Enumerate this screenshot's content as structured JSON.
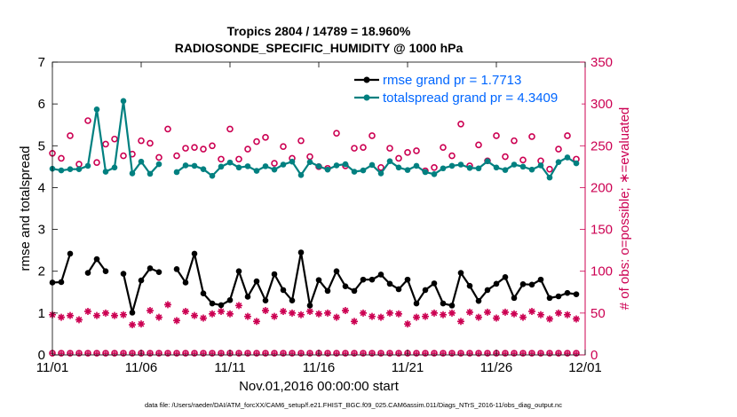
{
  "chart_data": {
    "type": "line",
    "title": "Tropics 2804 / 14789 = 18.960%",
    "subtitle": "RADIOSONDE_SPECIFIC_HUMIDITY @ 1000 hPa",
    "xlabel": "Nov.01,2016 00:00:00 start",
    "ylabel": "rmse and totalspread",
    "ylabel_right": "# of obs: o=possible; ∗=evaluated",
    "footnote": "data file: /Users/raeder/DAI/ATM_forcXX/CAM6_setup/f.e21.FHIST_BGC.f09_025.CAM6assim.011/Diags_NTrS_2016-11/obs_diag_output.nc",
    "xlim": [
      0,
      30
    ],
    "ylim": [
      0,
      7
    ],
    "ylim_right": [
      0,
      350
    ],
    "x_ticks": [
      0,
      5,
      10,
      15,
      20,
      25,
      30
    ],
    "x_tick_labels": [
      "11/01",
      "11/06",
      "11/11",
      "11/16",
      "11/21",
      "11/26",
      "12/01"
    ],
    "y_ticks": [
      0,
      1,
      2,
      3,
      4,
      5,
      6,
      7
    ],
    "y_tick_labels": [
      "0",
      "1",
      "2",
      "3",
      "4",
      "5",
      "6",
      "7"
    ],
    "y_ticks_right": [
      0,
      50,
      100,
      150,
      200,
      250,
      300,
      350
    ],
    "y_tick_labels_right": [
      "0",
      "50",
      "100",
      "150",
      "200",
      "250",
      "300",
      "350"
    ],
    "x": [
      0,
      0.5,
      1,
      1.5,
      2,
      2.5,
      3,
      3.5,
      4,
      4.5,
      5,
      5.5,
      6,
      6.5,
      7,
      7.5,
      8,
      8.5,
      9,
      9.5,
      10,
      10.5,
      11,
      11.5,
      12,
      12.5,
      13,
      13.5,
      14,
      14.5,
      15,
      15.5,
      16,
      16.5,
      17,
      17.5,
      18,
      18.5,
      19,
      19.5,
      20,
      20.5,
      21,
      21.5,
      22,
      22.5,
      23,
      23.5,
      24,
      24.5,
      25,
      25.5,
      26,
      26.5,
      27,
      27.5,
      28,
      28.5,
      29,
      29.5
    ],
    "series": [
      {
        "name": "rmse grand pr = 1.7713",
        "color": "#000000",
        "marker": "dot",
        "axis": "left",
        "values": [
          1.73,
          1.74,
          2.42,
          null,
          1.96,
          2.29,
          2.0,
          null,
          1.94,
          1.01,
          1.78,
          2.07,
          1.98,
          null,
          2.05,
          1.73,
          2.42,
          1.47,
          1.23,
          1.19,
          1.31,
          2.0,
          1.39,
          1.76,
          1.3,
          1.93,
          1.55,
          1.3,
          2.45,
          1.18,
          1.79,
          1.53,
          2.0,
          1.64,
          1.53,
          1.8,
          1.8,
          1.92,
          1.7,
          1.57,
          1.8,
          1.23,
          1.55,
          1.71,
          1.23,
          1.18,
          1.96,
          1.65,
          1.29,
          1.55,
          1.7,
          1.86,
          1.36,
          1.69,
          1.68,
          1.8,
          1.36,
          1.4,
          1.48,
          1.45
        ]
      },
      {
        "name": "totalspread grand pr = 4.3409",
        "color": "#008080",
        "marker": "dot",
        "axis": "left",
        "values": [
          4.45,
          4.41,
          4.44,
          4.44,
          4.52,
          5.87,
          4.38,
          4.48,
          6.07,
          4.34,
          4.62,
          4.33,
          4.56,
          null,
          4.37,
          4.53,
          4.52,
          4.44,
          4.28,
          4.5,
          4.6,
          4.48,
          4.51,
          4.4,
          4.51,
          4.43,
          4.55,
          4.62,
          4.3,
          4.61,
          4.51,
          4.43,
          4.53,
          4.56,
          4.38,
          4.41,
          4.54,
          4.34,
          4.63,
          4.48,
          4.42,
          4.52,
          4.37,
          4.32,
          4.46,
          4.52,
          4.55,
          4.47,
          4.46,
          4.63,
          4.48,
          4.42,
          4.55,
          4.5,
          4.43,
          4.53,
          4.24,
          4.61,
          4.72,
          4.58
        ]
      },
      {
        "name": "possible obs",
        "color": "#cc0052",
        "marker": "circle",
        "axis": "right",
        "values": [
          241,
          235,
          262,
          228,
          280,
          230,
          252,
          258,
          238,
          240,
          256,
          253,
          236,
          270,
          238,
          247,
          248,
          246,
          250,
          234,
          270,
          234,
          246,
          255,
          260,
          229,
          249,
          235,
          256,
          237,
          225,
          223,
          265,
          226,
          247,
          248,
          262,
          224,
          247,
          235,
          242,
          244,
          220,
          224,
          248,
          238,
          276,
          226,
          251,
          232,
          262,
          237,
          256,
          233,
          261,
          232,
          222,
          246,
          262,
          234
        ]
      },
      {
        "name": "evaluated obs",
        "color": "#cc0052",
        "marker": "asterisk",
        "axis": "right",
        "values": [
          48,
          45,
          47,
          42,
          52,
          47,
          50,
          47,
          48,
          36,
          37,
          53,
          45,
          60,
          41,
          52,
          47,
          44,
          49,
          52,
          49,
          59,
          46,
          40,
          53,
          46,
          52,
          50,
          48,
          52,
          49,
          50,
          45,
          53,
          40,
          50,
          46,
          45,
          50,
          49,
          37,
          45,
          46,
          50,
          48,
          50,
          40,
          51,
          45,
          51,
          44,
          51,
          49,
          45,
          52,
          48,
          43,
          50,
          48,
          43
        ]
      }
    ],
    "legend": [
      {
        "label": "rmse grand pr = 1.7713",
        "color": "#000000"
      },
      {
        "label": "totalspread grand pr = 4.3409",
        "color": "#008080"
      }
    ],
    "legend_text_color": "#0066ff",
    "legend_position": "top-right"
  }
}
